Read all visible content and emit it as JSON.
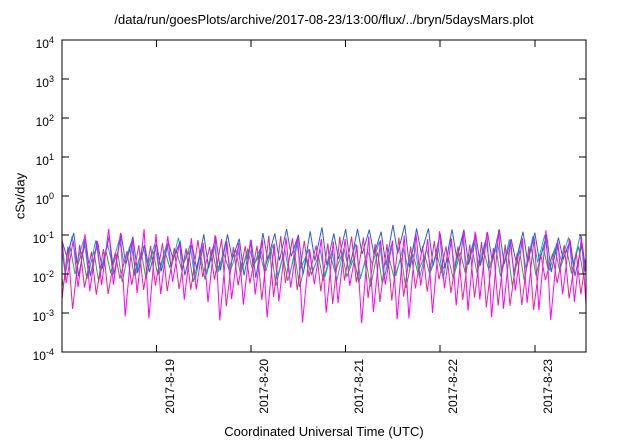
{
  "chart_data": {
    "type": "line",
    "title": "/data/run/goesPlots/archive/2017-08-23/13:00/flux/../bryn/5daysMars.plot",
    "xlabel": "Coordinated Universal Time (UTC)",
    "ylabel": "cSv/day",
    "y_scale": "log",
    "ylim": [
      0.0001,
      10000
    ],
    "y_tick_exponents": [
      4,
      3,
      2,
      1,
      0,
      -1,
      -2,
      -3,
      -4
    ],
    "x_total_hours": 133,
    "x_ticks": [
      {
        "label": "2017-8-19",
        "hour": 24
      },
      {
        "label": "2017-8-20",
        "hour": 48
      },
      {
        "label": "2017-8-21",
        "hour": 72
      },
      {
        "label": "2017-8-22",
        "hour": 96
      },
      {
        "label": "2017-8-23",
        "hour": 120
      }
    ],
    "grid": false,
    "legend": "none",
    "frame_color": "#000000",
    "seed": 7,
    "description": "Dense quasi-periodic spiky oscillations (~3 h period) of several overlapping traces confined between ~1e-3 and ~1.2e-1 cSv/day across the full 5.5-day span",
    "series": [
      {
        "name": "trace-green",
        "color": "#1faa3c",
        "approx_max": 0.035,
        "approx_min": 0.008,
        "top_log": -1.45,
        "bottom_log": -2.1,
        "top_jitter": 0.25,
        "bottom_jitter": 0.45,
        "period_hours": 3,
        "phase": 0.3,
        "mod_amp": 0.1,
        "mod_period_hours": 17
      },
      {
        "name": "trace-cyan",
        "color": "#00b7c0",
        "approx_max": 0.06,
        "approx_min": 0.011,
        "top_log": -1.2,
        "bottom_log": -1.95,
        "top_jitter": 0.28,
        "bottom_jitter": 0.5,
        "period_hours": 3,
        "phase": 0.15,
        "mod_amp": 0.1,
        "mod_period_hours": 21
      },
      {
        "name": "trace-blue",
        "color": "#2e5cd6",
        "approx_max": 0.11,
        "approx_min": 0.016,
        "top_log": -1.0,
        "bottom_log": -1.8,
        "top_jitter": 0.3,
        "bottom_jitter": 0.55,
        "period_hours": 3,
        "phase": 0.0,
        "mod_amp": 0.12,
        "mod_period_hours": 19
      },
      {
        "name": "trace-pink",
        "color": "#e6219a",
        "approx_max": 0.055,
        "approx_min": 0.004,
        "top_log": -1.25,
        "bottom_log": -2.45,
        "top_jitter": 0.3,
        "bottom_jitter": 0.85,
        "period_hours": 3,
        "phase": 0.5,
        "mod_amp": 0.11,
        "mod_period_hours": 23
      },
      {
        "name": "trace-magenta",
        "color": "#ff00ff",
        "approx_max": 0.08,
        "approx_min": 0.001,
        "top_log": -1.1,
        "bottom_log": -2.7,
        "top_jitter": 0.32,
        "bottom_jitter": 1.05,
        "period_hours": 3,
        "phase": 0.05,
        "mod_amp": 0.12,
        "mod_period_hours": 15
      }
    ]
  }
}
